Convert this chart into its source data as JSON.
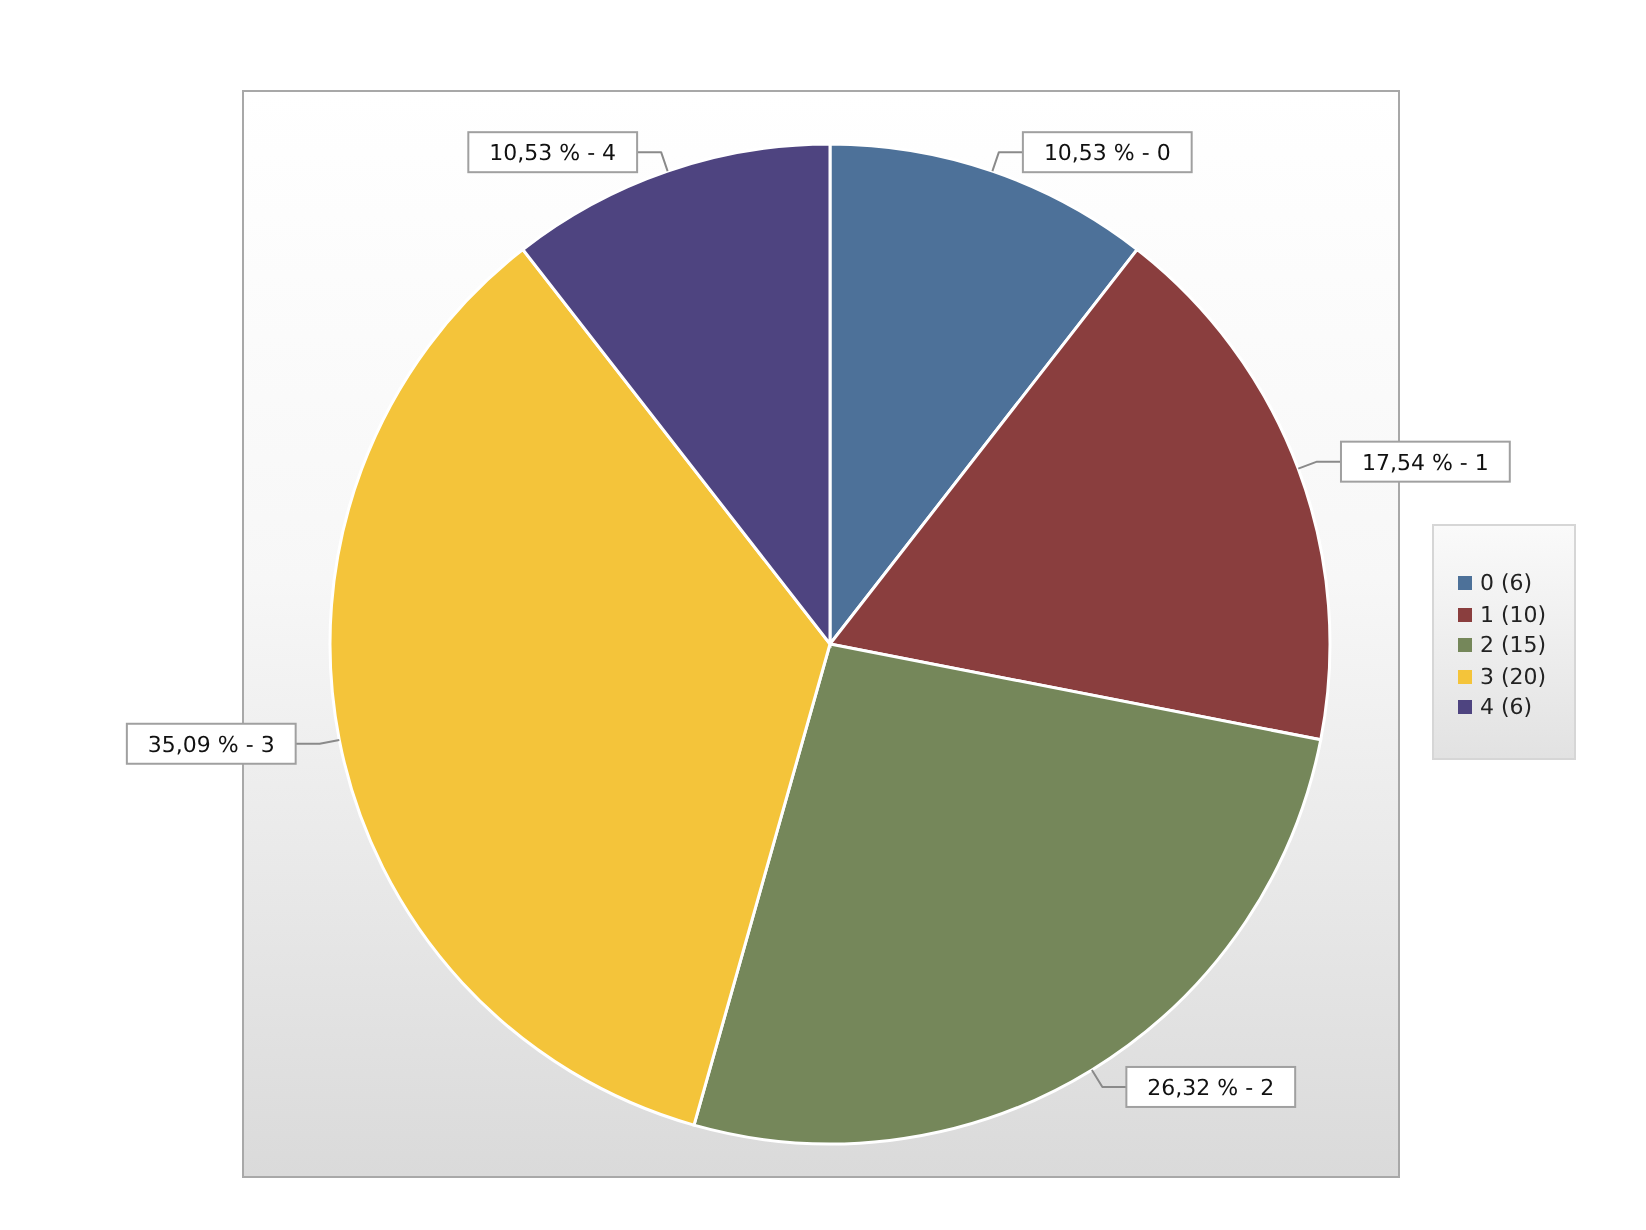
{
  "chart_data": {
    "type": "pie",
    "categories": [
      "0 (6)",
      "1 (10)",
      "2 (15)",
      "3 (20)",
      "4 (6)"
    ],
    "values": [
      10.53,
      17.54,
      26.32,
      35.09,
      10.53
    ],
    "colors": [
      "#4d7199",
      "#8a3e3e",
      "#75875a",
      "#f4c43a",
      "#4e4480"
    ],
    "value_labels": [
      "10,53 % - 0",
      "17,54 % - 1",
      "26,32 % - 2",
      "35,09 % - 3",
      "10,53 % - 4"
    ],
    "legend": "right"
  }
}
